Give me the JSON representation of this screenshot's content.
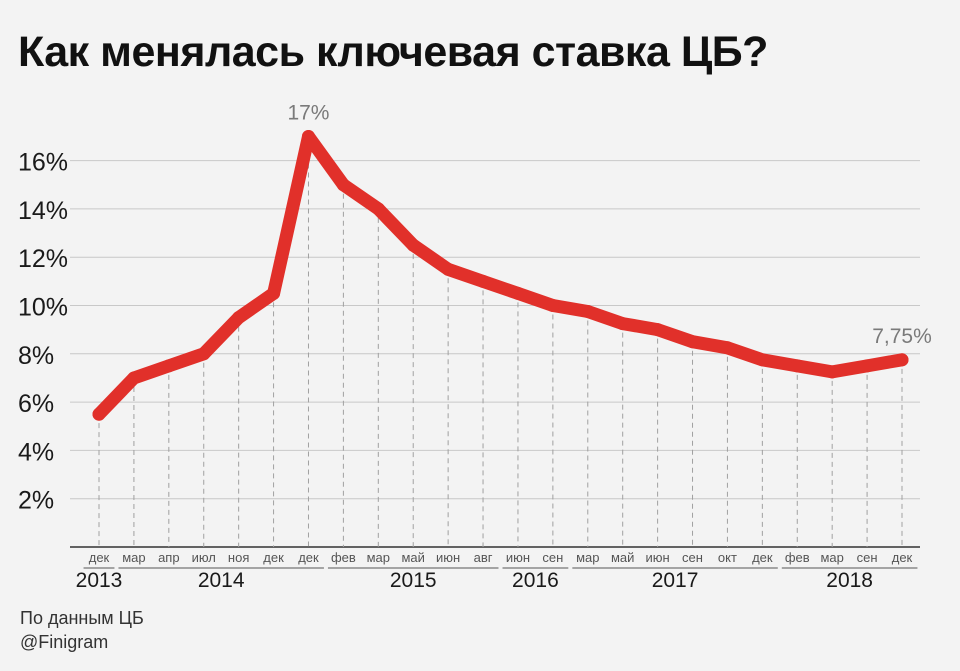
{
  "chart_data": {
    "type": "line",
    "title": "Как менялась ключевая ставка ЦБ?",
    "xlabel": "",
    "ylabel": "",
    "y_ticks": [
      "2%",
      "4%",
      "6%",
      "8%",
      "10%",
      "12%",
      "14%",
      "16%"
    ],
    "y_tick_values": [
      2,
      4,
      6,
      8,
      10,
      12,
      14,
      16
    ],
    "ylim": [
      0,
      17.5
    ],
    "grid": "horizontal",
    "x_labels": [
      "дек",
      "мар",
      "апр",
      "июл",
      "ноя",
      "дек",
      "дек",
      "фев",
      "мар",
      "май",
      "июн",
      "авг",
      "июн",
      "сен",
      "мар",
      "май",
      "июн",
      "сен",
      "окт",
      "дек",
      "фев",
      "мар",
      "сен",
      "дек"
    ],
    "years": [
      {
        "label": "2013",
        "from": 0,
        "to": 0
      },
      {
        "label": "2014",
        "from": 1,
        "to": 6
      },
      {
        "label": "2015",
        "from": 7,
        "to": 11
      },
      {
        "label": "2016",
        "from": 12,
        "to": 13
      },
      {
        "label": "2017",
        "from": 14,
        "to": 19
      },
      {
        "label": "2018",
        "from": 20,
        "to": 23
      }
    ],
    "series": [
      {
        "color": "#e1302a",
        "values": [
          5.5,
          7.0,
          7.5,
          8.0,
          9.5,
          10.5,
          17.0,
          15.0,
          14.0,
          12.5,
          11.5,
          11.0,
          10.5,
          10.0,
          9.75,
          9.25,
          9.0,
          8.5,
          8.25,
          7.75,
          7.5,
          7.25,
          7.5,
          7.75
        ]
      }
    ],
    "annotations": [
      {
        "index": 6,
        "text": "17%"
      },
      {
        "index": 23,
        "text": "7,75%"
      }
    ]
  },
  "source": {
    "line1": "По данным ЦБ",
    "line2": "@Finigram"
  }
}
